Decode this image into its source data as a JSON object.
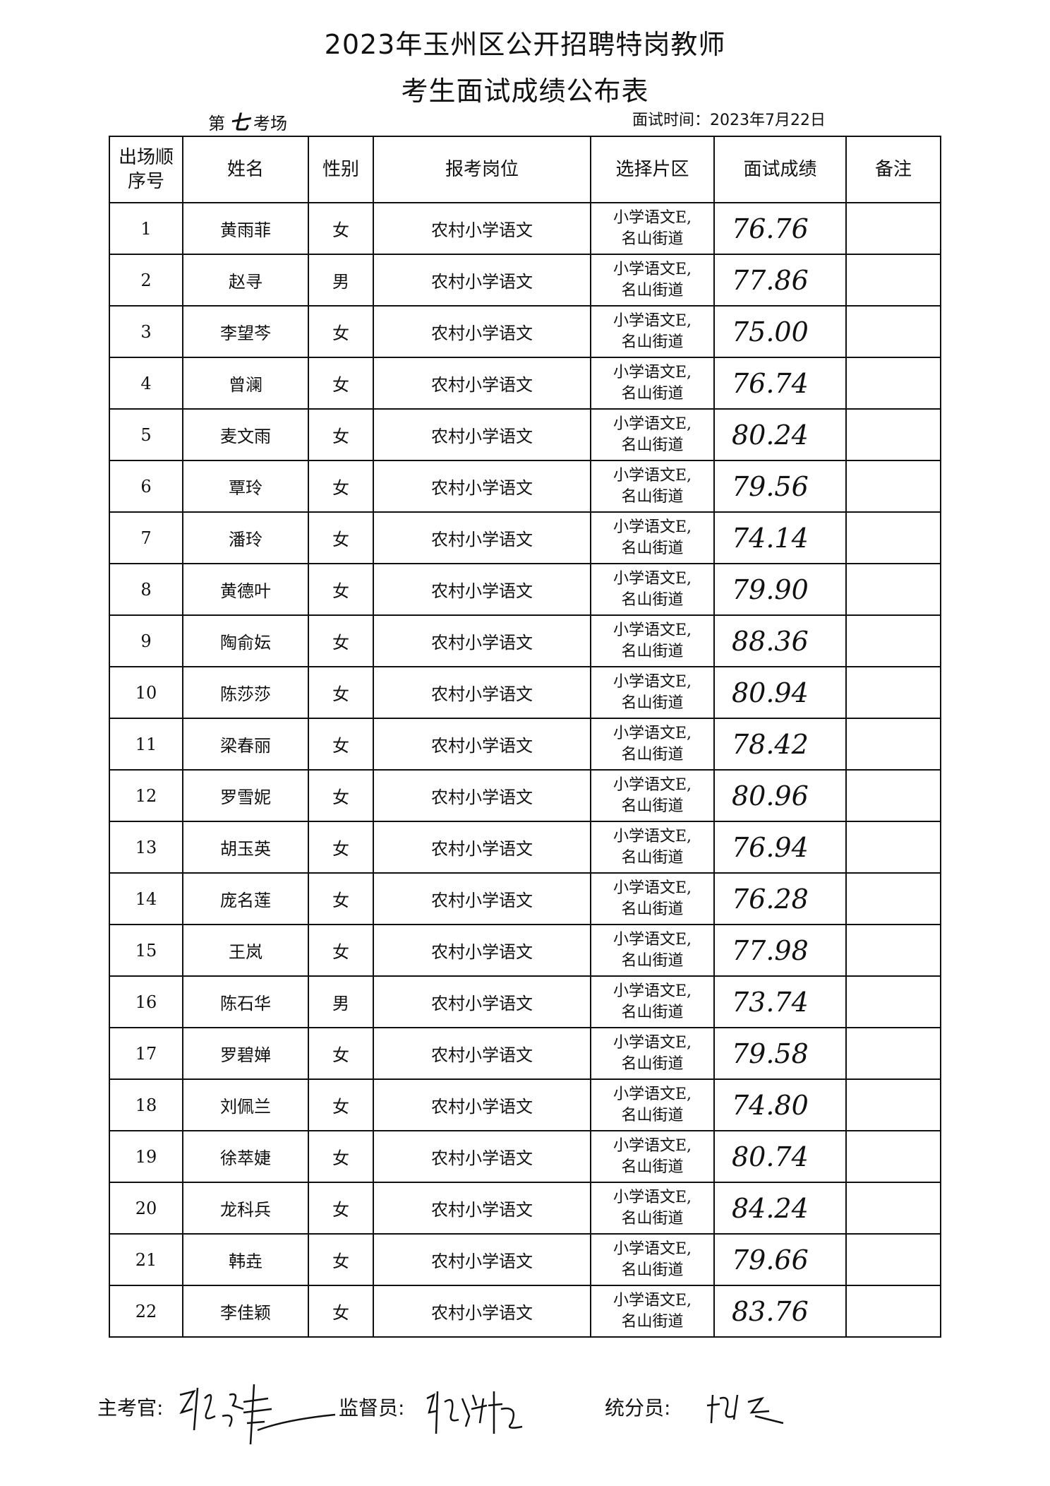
{
  "header": {
    "title_line1": "2023年玉州区公开招聘特岗教师",
    "title_line2": "考生面试成绩公布表",
    "room_prefix": "第",
    "room_number": "七",
    "room_suffix": "考场",
    "interview_date": "面试时间：2023年7月22日"
  },
  "table": {
    "columns": [
      "出场顺序号",
      "姓名",
      "性别",
      "报考岗位",
      "选择片区",
      "面试成绩",
      "备注"
    ],
    "rows": [
      {
        "seq": "1",
        "name": "黄雨菲",
        "gender": "女",
        "position": "农村小学语文",
        "area1": "小学语文E,",
        "area2": "名山街道",
        "score": "76.76",
        "note": ""
      },
      {
        "seq": "2",
        "name": "赵寻",
        "gender": "男",
        "position": "农村小学语文",
        "area1": "小学语文E,",
        "area2": "名山街道",
        "score": "77.86",
        "note": ""
      },
      {
        "seq": "3",
        "name": "李望芩",
        "gender": "女",
        "position": "农村小学语文",
        "area1": "小学语文E,",
        "area2": "名山街道",
        "score": "75.00",
        "note": ""
      },
      {
        "seq": "4",
        "name": "曾澜",
        "gender": "女",
        "position": "农村小学语文",
        "area1": "小学语文E,",
        "area2": "名山街道",
        "score": "76.74",
        "note": ""
      },
      {
        "seq": "5",
        "name": "麦文雨",
        "gender": "女",
        "position": "农村小学语文",
        "area1": "小学语文E,",
        "area2": "名山街道",
        "score": "80.24",
        "note": ""
      },
      {
        "seq": "6",
        "name": "覃玲",
        "gender": "女",
        "position": "农村小学语文",
        "area1": "小学语文E,",
        "area2": "名山街道",
        "score": "79.56",
        "note": ""
      },
      {
        "seq": "7",
        "name": "潘玲",
        "gender": "女",
        "position": "农村小学语文",
        "area1": "小学语文E,",
        "area2": "名山街道",
        "score": "74.14",
        "note": ""
      },
      {
        "seq": "8",
        "name": "黄德叶",
        "gender": "女",
        "position": "农村小学语文",
        "area1": "小学语文E,",
        "area2": "名山街道",
        "score": "79.90",
        "note": ""
      },
      {
        "seq": "9",
        "name": "陶俞妘",
        "gender": "女",
        "position": "农村小学语文",
        "area1": "小学语文E,",
        "area2": "名山街道",
        "score": "88.36",
        "note": ""
      },
      {
        "seq": "10",
        "name": "陈莎莎",
        "gender": "女",
        "position": "农村小学语文",
        "area1": "小学语文E,",
        "area2": "名山街道",
        "score": "80.94",
        "note": ""
      },
      {
        "seq": "11",
        "name": "梁春丽",
        "gender": "女",
        "position": "农村小学语文",
        "area1": "小学语文E,",
        "area2": "名山街道",
        "score": "78.42",
        "note": ""
      },
      {
        "seq": "12",
        "name": "罗雪妮",
        "gender": "女",
        "position": "农村小学语文",
        "area1": "小学语文E,",
        "area2": "名山街道",
        "score": "80.96",
        "note": ""
      },
      {
        "seq": "13",
        "name": "胡玉英",
        "gender": "女",
        "position": "农村小学语文",
        "area1": "小学语文E,",
        "area2": "名山街道",
        "score": "76.94",
        "note": ""
      },
      {
        "seq": "14",
        "name": "庞名莲",
        "gender": "女",
        "position": "农村小学语文",
        "area1": "小学语文E,",
        "area2": "名山街道",
        "score": "76.28",
        "note": ""
      },
      {
        "seq": "15",
        "name": "王岚",
        "gender": "女",
        "position": "农村小学语文",
        "area1": "小学语文E,",
        "area2": "名山街道",
        "score": "77.98",
        "note": ""
      },
      {
        "seq": "16",
        "name": "陈石华",
        "gender": "男",
        "position": "农村小学语文",
        "area1": "小学语文E,",
        "area2": "名山街道",
        "score": "73.74",
        "note": ""
      },
      {
        "seq": "17",
        "name": "罗碧婵",
        "gender": "女",
        "position": "农村小学语文",
        "area1": "小学语文E,",
        "area2": "名山街道",
        "score": "79.58",
        "note": ""
      },
      {
        "seq": "18",
        "name": "刘佩兰",
        "gender": "女",
        "position": "农村小学语文",
        "area1": "小学语文E,",
        "area2": "名山街道",
        "score": "74.80",
        "note": ""
      },
      {
        "seq": "19",
        "name": "徐萃婕",
        "gender": "女",
        "position": "农村小学语文",
        "area1": "小学语文E,",
        "area2": "名山街道",
        "score": "80.74",
        "note": ""
      },
      {
        "seq": "20",
        "name": "龙科兵",
        "gender": "女",
        "position": "农村小学语文",
        "area1": "小学语文E,",
        "area2": "名山街道",
        "score": "84.24",
        "note": ""
      },
      {
        "seq": "21",
        "name": "韩垚",
        "gender": "女",
        "position": "农村小学语文",
        "area1": "小学语文E,",
        "area2": "名山街道",
        "score": "79.66",
        "note": ""
      },
      {
        "seq": "22",
        "name": "李佳颖",
        "gender": "女",
        "position": "农村小学语文",
        "area1": "小学语文E,",
        "area2": "名山街道",
        "score": "83.76",
        "note": ""
      }
    ]
  },
  "footer": {
    "chief_examiner_label": "主考官:",
    "supervisor_label": "监督员:",
    "scorer_label": "统分员:"
  }
}
